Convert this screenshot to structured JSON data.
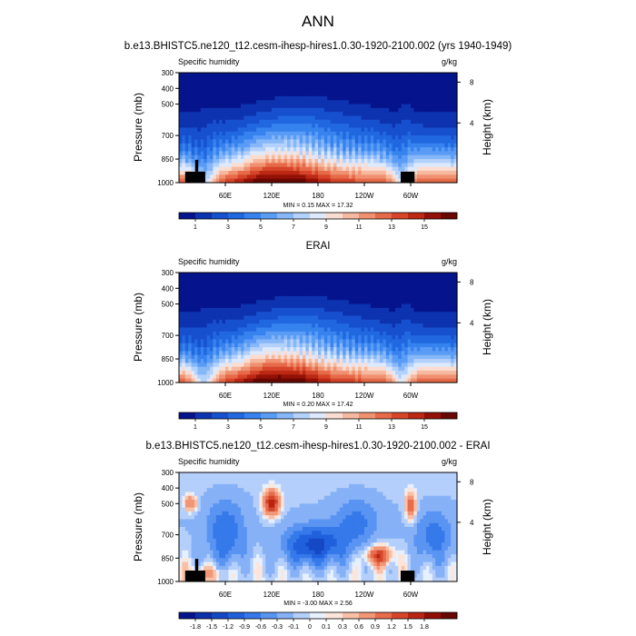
{
  "figure_title": "ANN",
  "colors": {
    "seq": [
      "#05148c",
      "#0d33b0",
      "#1650cf",
      "#2168e0",
      "#3682ee",
      "#5a9cf5",
      "#86b7f8",
      "#b4d1fb",
      "#dde9fc",
      "#fbdcd0",
      "#f6b89e",
      "#ef9171",
      "#e66a49",
      "#d6452a",
      "#bb2814",
      "#931106",
      "#6a0700"
    ],
    "div": [
      "#05148c",
      "#0d2fa8",
      "#1548c4",
      "#2060dc",
      "#3579ea",
      "#5a94f2",
      "#86b1f7",
      "#b4cffb",
      "#e7f0fd",
      "#fde5d9",
      "#f9c0a6",
      "#f19778",
      "#e86c4c",
      "#d6452a",
      "#b92513",
      "#8f0f05",
      "#690600"
    ]
  },
  "chart_data": [
    {
      "type": "heatmap",
      "title": "b.e13.BHISTC5.ne120_t12.cesm-ihesp-hires1.0.30-1920-2100.002 (yrs 1940-1949)",
      "left_label": "Specific humidity",
      "units": "g/kg",
      "xticks": [
        "60E",
        "120E",
        "180",
        "120W",
        "60W"
      ],
      "xtick_lon": [
        60,
        120,
        180,
        240,
        300
      ],
      "xlim": [
        0,
        360
      ],
      "ylabel": "Pressure (mb)",
      "yticks": [
        "300",
        "400",
        "500",
        "700",
        "850",
        "1000"
      ],
      "ytick_p": [
        300,
        400,
        500,
        700,
        850,
        1000
      ],
      "ylim": [
        300,
        1000
      ],
      "ylabel_right": "Height (km)",
      "rticks": [
        "8",
        "4"
      ],
      "rtick_p": [
        360,
        620
      ],
      "stats": "MIN =   0.15  MAX =  17.32",
      "min": 0.15,
      "max": 17.32,
      "field": "model",
      "colorbar": {
        "palette": "seq",
        "labels": [
          "1",
          "3",
          "5",
          "7",
          "9",
          "11",
          "13",
          "15"
        ],
        "label_pos": [
          1,
          3,
          5,
          7,
          9,
          11,
          13,
          15
        ]
      }
    },
    {
      "type": "heatmap",
      "title": "ERAI",
      "left_label": "Specific humidity",
      "units": "g/kg",
      "xticks": [
        "60E",
        "120E",
        "180",
        "120W",
        "60W"
      ],
      "xtick_lon": [
        60,
        120,
        180,
        240,
        300
      ],
      "xlim": [
        0,
        360
      ],
      "ylabel": "Pressure (mb)",
      "yticks": [
        "300",
        "400",
        "500",
        "700",
        "850",
        "1000"
      ],
      "ytick_p": [
        300,
        400,
        500,
        700,
        850,
        1000
      ],
      "ylim": [
        300,
        1000
      ],
      "ylabel_right": "Height (km)",
      "rticks": [
        "8",
        "4"
      ],
      "rtick_p": [
        360,
        620
      ],
      "stats": "MIN =   0.20  MAX =  17.42",
      "min": 0.2,
      "max": 17.42,
      "field": "obs",
      "colorbar": {
        "palette": "seq",
        "labels": [
          "1",
          "3",
          "5",
          "7",
          "9",
          "11",
          "13",
          "15"
        ],
        "label_pos": [
          1,
          3,
          5,
          7,
          9,
          11,
          13,
          15
        ]
      }
    },
    {
      "type": "heatmap",
      "title": "b.e13.BHISTC5.ne120_t12.cesm-ihesp-hires1.0.30-1920-2100.002 - ERAI",
      "left_label": "Specific humidity",
      "units": "g/kg",
      "xticks": [
        "60E",
        "120E",
        "180",
        "120W",
        "60W"
      ],
      "xtick_lon": [
        60,
        120,
        180,
        240,
        300
      ],
      "xlim": [
        0,
        360
      ],
      "ylabel": "Pressure (mb)",
      "yticks": [
        "300",
        "400",
        "500",
        "700",
        "850",
        "1000"
      ],
      "ytick_p": [
        300,
        400,
        500,
        700,
        850,
        1000
      ],
      "ylim": [
        300,
        1000
      ],
      "ylabel_right": "Height (km)",
      "rticks": [
        "8",
        "4"
      ],
      "rtick_p": [
        360,
        620
      ],
      "stats": "MIN =  -3.00  MAX =   2.56",
      "min": -3.0,
      "max": 2.56,
      "field": "diff",
      "colorbar": {
        "palette": "div",
        "labels": [
          "-1.8",
          "-1.5",
          "-1.2",
          "-0.9",
          "-0.6",
          "-0.3",
          "-0.1",
          "0",
          "0.1",
          "0.3",
          "0.6",
          "0.9",
          "1.2",
          "1.5",
          "1.8"
        ],
        "label_pos": [
          1,
          2,
          3,
          4,
          5,
          6,
          7,
          8,
          9,
          10,
          11,
          12,
          13,
          14,
          15
        ]
      }
    }
  ]
}
